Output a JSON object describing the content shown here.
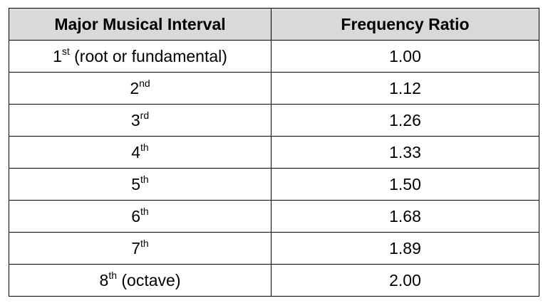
{
  "table": {
    "headers": [
      "Major Musical Interval",
      "Frequency Ratio"
    ],
    "rows": [
      {
        "number": "1",
        "suffix": "st",
        "rest": " (root or fundamental)",
        "ratio": "1.00"
      },
      {
        "number": "2",
        "suffix": "nd",
        "rest": "",
        "ratio": "1.12"
      },
      {
        "number": "3",
        "suffix": "rd",
        "rest": "",
        "ratio": "1.26"
      },
      {
        "number": "4",
        "suffix": "th",
        "rest": "",
        "ratio": "1.33"
      },
      {
        "number": "5",
        "suffix": "th",
        "rest": "",
        "ratio": "1.50"
      },
      {
        "number": "6",
        "suffix": "th",
        "rest": "",
        "ratio": "1.68"
      },
      {
        "number": "7",
        "suffix": "th",
        "rest": "",
        "ratio": "1.89"
      },
      {
        "number": "8",
        "suffix": "th",
        "rest": " (octave)",
        "ratio": "2.00"
      }
    ]
  }
}
